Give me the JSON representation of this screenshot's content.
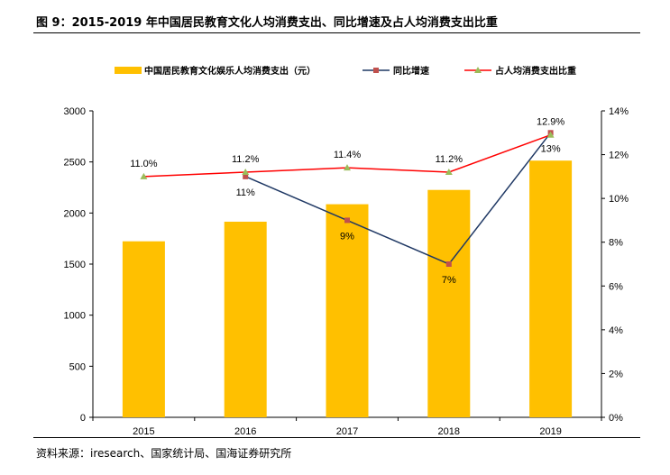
{
  "figure": {
    "title": "图 9：2015-2019 年中国居民教育文化人均消费支出、同比增速及占人均消费支出比重",
    "source": "资料来源：iresearch、国家统计局、国海证券研究所"
  },
  "chart_data": {
    "type": "bar",
    "categories": [
      "2015",
      "2016",
      "2017",
      "2018",
      "2019"
    ],
    "series": [
      {
        "name": "中国居民教育文化娱乐人均消费支出（元）",
        "type": "bar",
        "axis": "left",
        "color": "#FFC000",
        "values": [
          1723,
          1915,
          2086,
          2226,
          2513
        ]
      },
      {
        "name": "同比增速",
        "type": "line",
        "axis": "right",
        "color": "#1F3864",
        "marker_color": "#C0504D",
        "values": [
          null,
          11,
          9,
          7,
          13
        ],
        "labels": [
          "",
          "11%",
          "9%",
          "7%",
          "13%"
        ]
      },
      {
        "name": "占人均消费支出比重",
        "type": "line",
        "axis": "right",
        "color": "#FF0000",
        "marker_color": "#9BBB59",
        "values": [
          11.0,
          11.2,
          11.4,
          11.2,
          12.9
        ],
        "labels": [
          "11.0%",
          "11.2%",
          "11.4%",
          "11.2%",
          "12.9%"
        ]
      }
    ],
    "y_left": {
      "ylim": [
        0,
        3000
      ],
      "ticks": [
        "0",
        "500",
        "1000",
        "1500",
        "2000",
        "2500",
        "3000"
      ]
    },
    "y_right": {
      "ylim": [
        0,
        14
      ],
      "ticks": [
        "0%",
        "2%",
        "4%",
        "6%",
        "8%",
        "10%",
        "12%",
        "14%"
      ]
    },
    "legend_position": "top",
    "grid": false
  }
}
